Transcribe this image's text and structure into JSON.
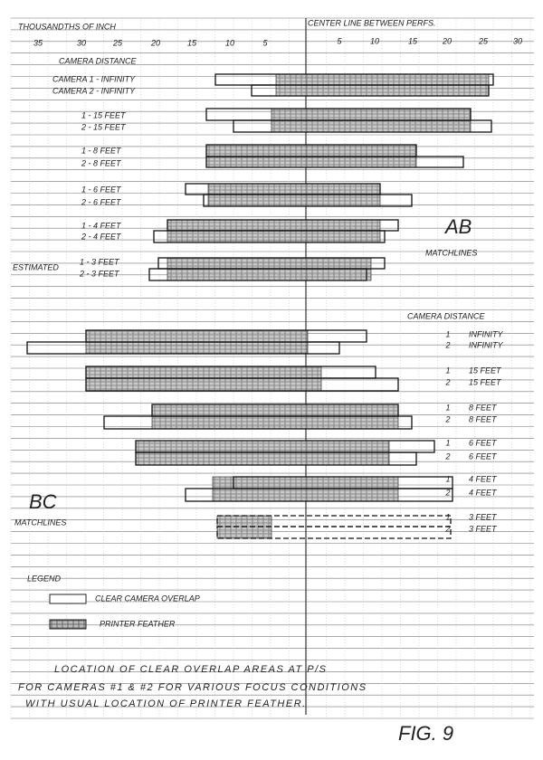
{
  "header": {
    "left_title": "THOUSANDTHS OF INCH",
    "right_title": "CENTER LINE BETWEEN PERFS.",
    "left_scale": [
      "35",
      "30",
      "25",
      "20",
      "15",
      "10",
      "5"
    ],
    "right_scale": [
      "5",
      "10",
      "15",
      "20",
      "25",
      "30"
    ]
  },
  "top_group": {
    "heading": "CAMERA DISTANCE",
    "estimated": "ESTIMATED",
    "rows": [
      "CAMERA 1 - INFINITY",
      "CAMERA 2 - INFINITY",
      "1 - 15 FEET",
      "2 - 15 FEET",
      "1 - 8 FEET",
      "2 - 8 FEET",
      "1 - 6 FEET",
      "2 - 6 FEET",
      "1 - 4 FEET",
      "2 - 4 FEET",
      "1 - 3 FEET",
      "2 - 3 FEET"
    ],
    "matchline_name": "AB",
    "matchline_label": "MATCHLINES"
  },
  "bottom_group": {
    "heading": "CAMERA DISTANCE",
    "rows": [
      {
        "camera": "1",
        "distance": "INFINITY"
      },
      {
        "camera": "2",
        "distance": "INFINITY"
      },
      {
        "camera": "1",
        "distance": "15 FEET"
      },
      {
        "camera": "2",
        "distance": "15 FEET"
      },
      {
        "camera": "1",
        "distance": "8 FEET"
      },
      {
        "camera": "2",
        "distance": "8 FEET"
      },
      {
        "camera": "1",
        "distance": "6 FEET"
      },
      {
        "camera": "2",
        "distance": "6 FEET"
      },
      {
        "camera": "1",
        "distance": "4 FEET"
      },
      {
        "camera": "2",
        "distance": "4 FEET"
      },
      {
        "camera": "1",
        "distance": "3 FEET"
      },
      {
        "camera": "2",
        "distance": "3 FEET"
      }
    ],
    "matchline_name": "BC",
    "matchline_label": "MATCHLINES"
  },
  "legend": {
    "title": "LEGEND",
    "items": [
      "CLEAR CAMERA OVERLAP",
      "PRINTER FEATHER"
    ]
  },
  "caption": [
    "LOCATION OF CLEAR OVERLAP AREAS AT P/S",
    "FOR CAMERAS #1 & #2 FOR VARIOUS FOCUS CONDITIONS",
    "WITH USUAL LOCATION OF PRINTER FEATHER."
  ],
  "figure": "FIG. 9"
}
